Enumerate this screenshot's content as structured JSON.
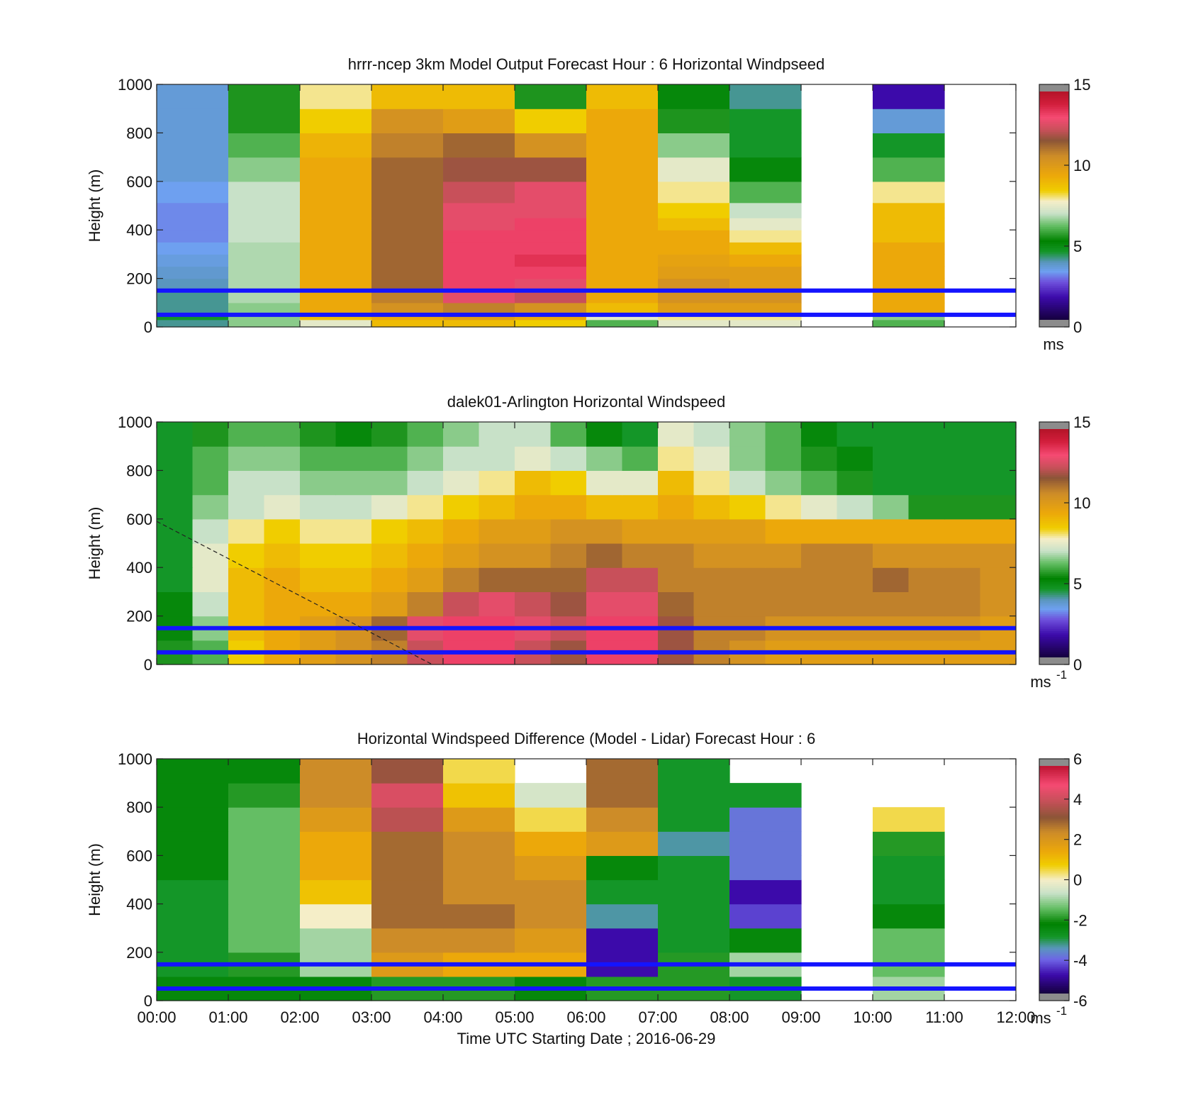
{
  "chart_data": [
    {
      "type": "heatmap",
      "title": "hrrr-ncep 3km Model Output   Forecast Hour : 6 Horizontal Windpseed",
      "ylabel": "Height (m)",
      "xlabel": "",
      "ylim": [
        0,
        1000
      ],
      "yticks": [
        "0",
        "200",
        "400",
        "600",
        "800",
        "1000"
      ],
      "xlim_hours": [
        0,
        12
      ],
      "colorbar": {
        "range": [
          0,
          15
        ],
        "ticks": [
          "0",
          "5",
          "10",
          "15"
        ],
        "unit": "ms",
        "unit_sup": "",
        "palette": "windspeed"
      },
      "reference_lines_m": [
        150,
        50
      ],
      "reference_line_color": "#1414ff",
      "x": [
        "00:00",
        "01:00",
        "02:00",
        "03:00",
        "04:00",
        "05:00",
        "06:00",
        "07:00",
        "08:00",
        "09:00",
        "10:00",
        "11:00"
      ],
      "y_levels": [
        20,
        40,
        75,
        125,
        175,
        225,
        275,
        325,
        375,
        425,
        475,
        550,
        650,
        750,
        850,
        950
      ],
      "values": [
        [
          4.0,
          6.5,
          7.5,
          9.0,
          9.0,
          8.5,
          6.0,
          7.5,
          7.5,
          null,
          6.0,
          null
        ],
        [
          4.5,
          6.5,
          9.0,
          9.5,
          10.0,
          9.5,
          7.5,
          8.0,
          8.0,
          null,
          6.5,
          null
        ],
        [
          4.0,
          6.5,
          9.5,
          10.5,
          11.0,
          10.5,
          9.0,
          10.0,
          10.0,
          null,
          9.5,
          null
        ],
        [
          4.0,
          6.8,
          9.5,
          11.0,
          13.0,
          12.5,
          9.5,
          10.5,
          10.5,
          null,
          9.5,
          null
        ],
        [
          3.8,
          6.8,
          9.5,
          11.5,
          13.5,
          13.0,
          9.5,
          10.5,
          10.0,
          null,
          9.5,
          null
        ],
        [
          3.6,
          6.8,
          9.5,
          11.5,
          13.5,
          13.5,
          9.5,
          10.0,
          10.0,
          null,
          9.5,
          null
        ],
        [
          3.4,
          6.8,
          9.5,
          11.5,
          13.5,
          13.8,
          9.5,
          9.8,
          9.5,
          null,
          9.5,
          null
        ],
        [
          3.2,
          6.8,
          9.5,
          11.5,
          13.5,
          13.5,
          9.5,
          9.5,
          9.0,
          null,
          9.5,
          null
        ],
        [
          3.0,
          7.0,
          9.5,
          11.5,
          13.5,
          13.5,
          9.5,
          9.5,
          8.0,
          null,
          9.0,
          null
        ],
        [
          3.0,
          7.0,
          9.5,
          11.5,
          13.0,
          13.5,
          9.5,
          9.0,
          7.5,
          null,
          9.0,
          null
        ],
        [
          3.0,
          7.0,
          9.5,
          11.5,
          13.0,
          13.0,
          9.5,
          8.5,
          7.0,
          null,
          9.0,
          null
        ],
        [
          3.2,
          7.0,
          9.5,
          11.5,
          12.5,
          13.0,
          9.5,
          8.0,
          6.0,
          null,
          8.0,
          null
        ],
        [
          3.5,
          6.5,
          9.5,
          11.5,
          12.0,
          12.0,
          9.5,
          7.5,
          5.0,
          null,
          6.0,
          null
        ],
        [
          3.5,
          6.0,
          9.2,
          11.0,
          11.5,
          10.5,
          9.5,
          6.5,
          4.5,
          null,
          4.5,
          null
        ],
        [
          3.5,
          5.5,
          8.5,
          10.5,
          10.0,
          8.5,
          9.5,
          5.5,
          4.5,
          null,
          3.5,
          null
        ],
        [
          3.5,
          5.5,
          8.0,
          9.0,
          9.0,
          5.5,
          9.0,
          5.0,
          4.0,
          null,
          1.5,
          null
        ]
      ]
    },
    {
      "type": "heatmap",
      "title": "dalek01-Arlington  Horizontal Windspeed",
      "ylabel": "Height (m)",
      "xlabel": "",
      "ylim": [
        0,
        1000
      ],
      "yticks": [
        "0",
        "200",
        "400",
        "600",
        "800",
        "1000"
      ],
      "xlim_hours": [
        0,
        12
      ],
      "colorbar": {
        "range": [
          0,
          15
        ],
        "ticks": [
          "0",
          "5",
          "10",
          "15"
        ],
        "unit": "ms",
        "unit_sup": "-1",
        "palette": "windspeed"
      },
      "reference_lines_m": [
        150,
        50
      ],
      "reference_line_color": "#1414ff",
      "x": [
        "00:00",
        "00:30",
        "01:00",
        "01:30",
        "02:00",
        "02:30",
        "03:00",
        "03:30",
        "04:00",
        "04:30",
        "05:00",
        "05:30",
        "06:00",
        "06:30",
        "07:00",
        "07:30",
        "08:00",
        "08:30",
        "09:00",
        "09:30",
        "10:00",
        "10:30",
        "11:00",
        "11:30"
      ],
      "y_levels": [
        50,
        150,
        250,
        350,
        450,
        550,
        650,
        750,
        850,
        950
      ],
      "values": [
        [
          5.5,
          6.0,
          8.5,
          9.5,
          10.0,
          10.5,
          11.0,
          12.5,
          13.5,
          13.5,
          12.5,
          12.0,
          13.5,
          13.5,
          12.0,
          11.0,
          10.5,
          10.0,
          10.0,
          10.0,
          10.0,
          10.0,
          10.0,
          10.0
        ],
        [
          5.0,
          6.5,
          9.0,
          9.5,
          10.0,
          10.5,
          11.5,
          13.0,
          13.5,
          13.5,
          13.0,
          12.5,
          13.5,
          13.5,
          12.0,
          11.0,
          11.0,
          10.5,
          10.5,
          10.5,
          10.5,
          10.5,
          10.5,
          10.0
        ],
        [
          5.0,
          7.0,
          9.0,
          9.5,
          9.5,
          9.5,
          10.0,
          11.0,
          12.5,
          13.0,
          12.5,
          12.0,
          13.0,
          13.0,
          11.5,
          11.0,
          11.0,
          11.0,
          11.0,
          11.0,
          11.0,
          11.0,
          11.0,
          10.5
        ],
        [
          4.5,
          7.5,
          9.0,
          9.5,
          9.0,
          9.0,
          9.5,
          10.0,
          11.0,
          11.5,
          11.5,
          11.5,
          12.5,
          12.5,
          11.0,
          11.0,
          11.0,
          11.0,
          11.0,
          11.0,
          11.5,
          11.0,
          11.0,
          10.5
        ],
        [
          4.5,
          7.5,
          8.5,
          9.0,
          8.5,
          8.5,
          9.0,
          9.5,
          10.0,
          10.5,
          10.5,
          11.0,
          11.5,
          11.0,
          11.0,
          10.5,
          10.5,
          10.5,
          11.0,
          11.0,
          10.5,
          10.5,
          10.5,
          10.5
        ],
        [
          4.5,
          7.0,
          8.0,
          8.5,
          8.0,
          8.0,
          8.5,
          9.0,
          9.5,
          10.0,
          10.0,
          10.5,
          10.5,
          10.0,
          10.0,
          10.0,
          10.0,
          9.5,
          9.5,
          9.5,
          9.5,
          9.5,
          9.5,
          9.5
        ],
        [
          4.5,
          6.5,
          7.0,
          7.5,
          7.0,
          7.0,
          7.5,
          8.0,
          8.5,
          9.0,
          9.5,
          9.5,
          9.0,
          9.0,
          9.5,
          9.0,
          8.5,
          8.0,
          7.5,
          7.0,
          6.5,
          5.5,
          5.5,
          5.5
        ],
        [
          4.5,
          6.0,
          7.0,
          7.0,
          6.5,
          6.5,
          6.5,
          7.0,
          7.5,
          8.0,
          9.0,
          8.5,
          7.5,
          7.5,
          9.0,
          8.0,
          7.0,
          6.5,
          6.0,
          5.5,
          4.5,
          4.5,
          4.5,
          4.5
        ],
        [
          4.5,
          6.0,
          6.5,
          6.5,
          6.0,
          6.0,
          6.0,
          6.5,
          7.0,
          7.0,
          7.5,
          7.0,
          6.5,
          6.0,
          8.0,
          7.5,
          6.5,
          6.0,
          5.5,
          5.0,
          4.5,
          4.5,
          4.5,
          4.5
        ],
        [
          4.5,
          5.5,
          6.0,
          6.0,
          5.5,
          5.0,
          5.5,
          6.0,
          6.5,
          7.0,
          7.0,
          6.0,
          5.0,
          4.5,
          7.5,
          7.0,
          6.5,
          6.0,
          5.0,
          4.5,
          4.5,
          4.5,
          4.5,
          4.5
        ]
      ]
    },
    {
      "type": "heatmap",
      "title": "Horizontal Windspeed Difference (Model - Lidar) Forecast Hour : 6",
      "ylabel": "Height (m)",
      "xlabel": "Time UTC  Starting Date ; 2016-06-29",
      "ylim": [
        0,
        1000
      ],
      "yticks": [
        "0",
        "200",
        "400",
        "600",
        "800",
        "1000"
      ],
      "xticks": [
        "00:00",
        "01:00",
        "02:00",
        "03:00",
        "04:00",
        "05:00",
        "06:00",
        "07:00",
        "08:00",
        "09:00",
        "10:00",
        "11:00",
        "12:00"
      ],
      "xlim_hours": [
        0,
        12
      ],
      "colorbar": {
        "range": [
          -6,
          6
        ],
        "ticks": [
          "-6",
          "-4",
          "-2",
          "0",
          "2",
          "4",
          "6"
        ],
        "unit": "ms",
        "unit_sup": "-1",
        "palette": "difference"
      },
      "reference_lines_m": [
        150,
        50
      ],
      "reference_line_color": "#1414ff",
      "x": [
        "00:00",
        "01:00",
        "02:00",
        "03:00",
        "04:00",
        "05:00",
        "06:00",
        "07:00",
        "08:00",
        "09:00",
        "10:00",
        "11:00"
      ],
      "y_levels": [
        50,
        150,
        250,
        350,
        450,
        550,
        650,
        750,
        850,
        950
      ],
      "values": [
        [
          -2.5,
          -2.5,
          -2.5,
          -2.0,
          -2.0,
          -2.5,
          -2.0,
          -2.0,
          -3.0,
          null,
          -1.0,
          null
        ],
        [
          -3.0,
          -2.0,
          -1.0,
          2.0,
          1.5,
          1.5,
          -5.0,
          -2.0,
          -1.0,
          null,
          -1.5,
          null
        ],
        [
          -3.0,
          -1.5,
          -1.0,
          2.5,
          2.5,
          2.0,
          -5.0,
          -3.0,
          -2.5,
          null,
          -1.5,
          null
        ],
        [
          -3.0,
          -1.5,
          0.0,
          3.0,
          3.0,
          2.5,
          -3.5,
          -3.0,
          -4.5,
          null,
          -2.5,
          null
        ],
        [
          -3.0,
          -1.5,
          1.0,
          3.0,
          2.5,
          2.5,
          -3.0,
          -3.0,
          -5.0,
          null,
          -3.0,
          null
        ],
        [
          -2.5,
          -1.5,
          1.5,
          3.0,
          2.5,
          2.0,
          -2.5,
          -3.0,
          -4.0,
          null,
          -3.0,
          null
        ],
        [
          -2.5,
          -1.5,
          1.5,
          3.0,
          2.5,
          1.5,
          2.0,
          -3.5,
          -4.0,
          null,
          -2.0,
          null
        ],
        [
          -2.5,
          -1.5,
          2.0,
          4.0,
          2.0,
          0.5,
          2.5,
          -3.0,
          -4.0,
          null,
          0.5,
          null
        ],
        [
          -2.5,
          -2.0,
          2.5,
          4.5,
          1.0,
          -0.5,
          3.0,
          -3.0,
          -3.0,
          null,
          null,
          null
        ],
        [
          -2.5,
          -2.5,
          2.5,
          3.5,
          0.5,
          null,
          3.0,
          -3.0,
          null,
          null,
          null,
          null
        ]
      ]
    }
  ]
}
